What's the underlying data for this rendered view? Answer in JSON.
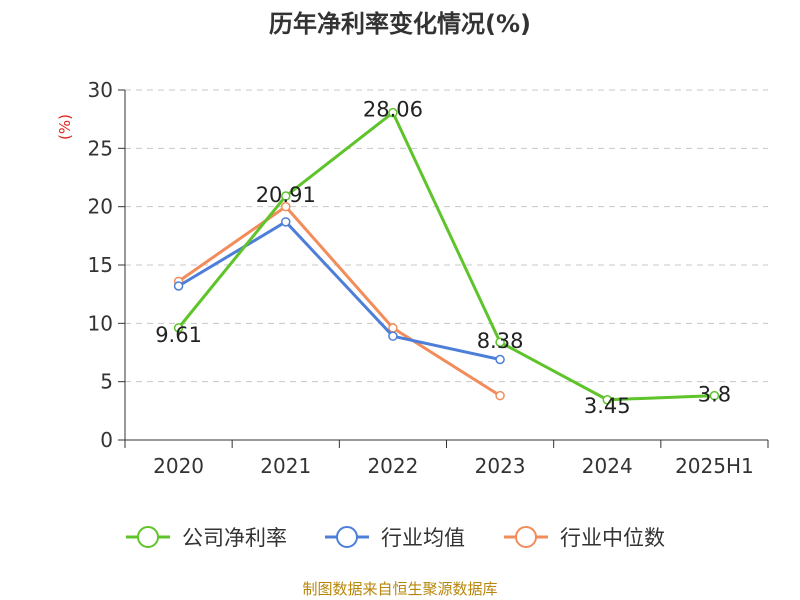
{
  "chart_data": {
    "type": "line",
    "title": "历年净利率变化情况(%)",
    "ylabel": "(%)",
    "xlabel": "",
    "categories": [
      "2020",
      "2021",
      "2022",
      "2023",
      "2024",
      "2025H1"
    ],
    "ylim": [
      0,
      30
    ],
    "yticks": [
      "0",
      "5",
      "10",
      "15",
      "20",
      "25",
      "30"
    ],
    "grid": true,
    "legend_position": "bottom",
    "series": [
      {
        "name": "公司净利率",
        "color": "#5ec42a",
        "values": [
          9.61,
          20.91,
          28.06,
          8.38,
          3.45,
          3.8
        ],
        "labels": [
          "9.61",
          "20.91",
          "28.06",
          "8.38",
          "3.45",
          "3.8"
        ]
      },
      {
        "name": "行业均值",
        "color": "#4d7fd9",
        "values": [
          13.2,
          18.7,
          8.9,
          6.9,
          null,
          null
        ]
      },
      {
        "name": "行业中位数",
        "color": "#f28c5a",
        "values": [
          13.6,
          20.0,
          9.6,
          3.8,
          null,
          null
        ]
      }
    ]
  },
  "source": "制图数据来自恒生聚源数据库"
}
